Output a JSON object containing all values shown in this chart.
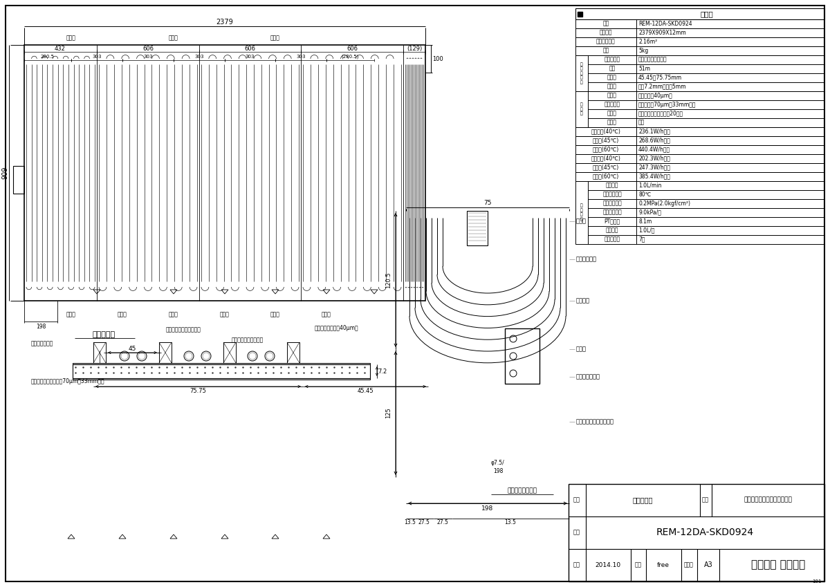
{
  "page_bg": "#ffffff",
  "line_color": "#000000",
  "spec_title": "仕　様",
  "spec_simple": [
    [
      "型式",
      "REM-12DA-SKD0924"
    ],
    [
      "外形寸法",
      "2379X909X12mm"
    ],
    [
      "有効放熱面積",
      "2.16m²"
    ],
    [
      "重量",
      "5kg"
    ]
  ],
  "coil_rows": [
    [
      "材質　材料",
      "架橋ポリエチレン管"
    ],
    [
      "総長",
      "51m"
    ],
    [
      "ピッチ",
      "45.45～75.75mm"
    ],
    [
      "サイズ",
      "外径7.2mm　内径5mm"
    ]
  ],
  "mat_rows": [
    [
      "放熱材",
      "アルミ箔（40μm）"
    ],
    [
      "放熱補助材",
      "アルミ箔（70μm－33mm巾）"
    ],
    [
      "断熱材",
      "ポリスチレン発泡体（20倍）"
    ],
    [
      "固定材",
      "なし"
    ]
  ],
  "heat_rows": [
    [
      "投入熱量(40℃)",
      "236.1W/h・枚"
    ],
    [
      "　　　(45℃)",
      "268.6W/h・枚"
    ],
    [
      "　　　(60℃)",
      "440.4W/h・枚"
    ],
    [
      "暖房能力(40℃)",
      "202.3W/h・枚"
    ],
    [
      "　　　(45℃)",
      "247.3W/h・枚"
    ],
    [
      "　　　(60℃)",
      "385.4W/h・枚"
    ]
  ],
  "design_rows": [
    [
      "標準流量",
      "1.0L/min"
    ],
    [
      "最高使用温度",
      "80℃"
    ],
    [
      "最高使用圧力",
      "0.2MPa(2.0kgf/cm²)"
    ],
    [
      "標準流量抵抗",
      "9.0kPa/枚"
    ],
    [
      "PT相当長",
      "8.1m"
    ],
    [
      "保有水量",
      "1.0L/枚"
    ],
    [
      "小根太溝数",
      "7本"
    ]
  ],
  "footer_rows": [
    [
      "名称",
      "外形寸法図",
      "品名",
      "高効率小根太入り温水マット"
    ],
    [
      "型式",
      "REM-12DA-SKD0924"
    ],
    [
      "作成",
      "2014.10",
      "尺度",
      "free",
      "サイズ",
      "A3",
      "リンナイ 株式会社"
    ]
  ]
}
